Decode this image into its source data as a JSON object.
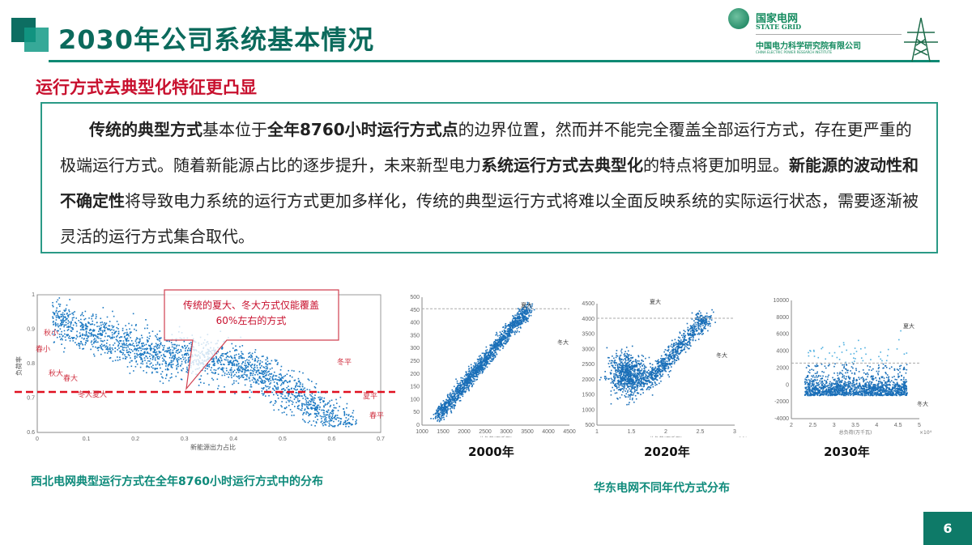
{
  "header": {
    "title": "2030年公司系统基本情况",
    "logo_cn": "国家电网",
    "logo_en": "STATE GRID",
    "institute": "中国电力科学研究院有限公司",
    "institute_en": "CHINA ELECTRIC POWER RESEARCH INSTITUTE"
  },
  "subtitle": "运行方式去典型化特征更凸显",
  "paragraph": [
    {
      "t": "传统的典型方式",
      "b": true
    },
    {
      "t": "基本位于",
      "b": false
    },
    {
      "t": "全年8760小时运行方式点",
      "b": true
    },
    {
      "t": "的边界位置，然而并不能完全覆盖全部运行方式，存在更严重的极端运行方式。随着新能源占比的逐步提升，未来新型电力",
      "b": false
    },
    {
      "t": "系统运行方式去典型化",
      "b": true
    },
    {
      "t": "的特点将更加明显。",
      "b": false
    },
    {
      "t": "新能源的波动性和不确定性",
      "b": true
    },
    {
      "t": "将导致电力系统的运行方式更加多样化，传统的典型运行方式将难以全面反映系统的实际运行状态，需要逐渐被灵活的运行方式集合取代。",
      "b": false
    }
  ],
  "northwest_chart": {
    "callout": "传统的夏大、冬大方式仅能覆盖60%左右的方式",
    "xticks": [
      "0",
      "0.1",
      "0.2",
      "0.3",
      "0.4",
      "0.5",
      "0.6",
      "0.7"
    ],
    "yticks": [
      "0.6",
      "0.7",
      "0.8",
      "0.9",
      "1"
    ],
    "xlabel": "新能源出力占比",
    "ylabel": "负荷率",
    "labels": [
      "秋小",
      "春小",
      "秋大",
      "春大",
      "冬大",
      "夏大",
      "冬平",
      "夏平",
      "春平"
    ],
    "caption": "西北电网典型运行方式在全年8760小时运行方式中的分布"
  },
  "east_charts": [
    {
      "year": "2000年",
      "xticks": [
        "1000",
        "1500",
        "2000",
        "2500",
        "3000",
        "3500",
        "4000",
        "4500"
      ],
      "yticks": [
        "0",
        "50",
        "100",
        "150",
        "200",
        "250",
        "300",
        "350",
        "400",
        "450",
        "500"
      ],
      "xlabel": "总负荷(万千瓦)",
      "summer": "夏大",
      "winter": "冬大"
    },
    {
      "year": "2020年",
      "xticks": [
        "1",
        "1.5",
        "2",
        "2.5",
        "3"
      ],
      "yticks": [
        "500",
        "1000",
        "1500",
        "2000",
        "2500",
        "3000",
        "3500",
        "4000",
        "4500"
      ],
      "xlabel": "总负荷(万千瓦)",
      "exp": "×10⁴",
      "summer": "夏大",
      "winter": "冬大"
    },
    {
      "year": "2030年",
      "xticks": [
        "2",
        "2.5",
        "3",
        "3.5",
        "4",
        "4.5",
        "5"
      ],
      "yticks": [
        "-4000",
        "-2000",
        "0",
        "2000",
        "4000",
        "6000",
        "8000",
        "10000"
      ],
      "xlabel": "总负荷(万千瓦)",
      "exp": "×10⁴",
      "summer": "夏大",
      "winter": "冬大"
    }
  ],
  "east_caption": "华东电网不同年代方式分布",
  "page_number": "6",
  "colors": {
    "teal": "#0e7a68",
    "red": "#c8102e",
    "point": "#1a78c2"
  }
}
